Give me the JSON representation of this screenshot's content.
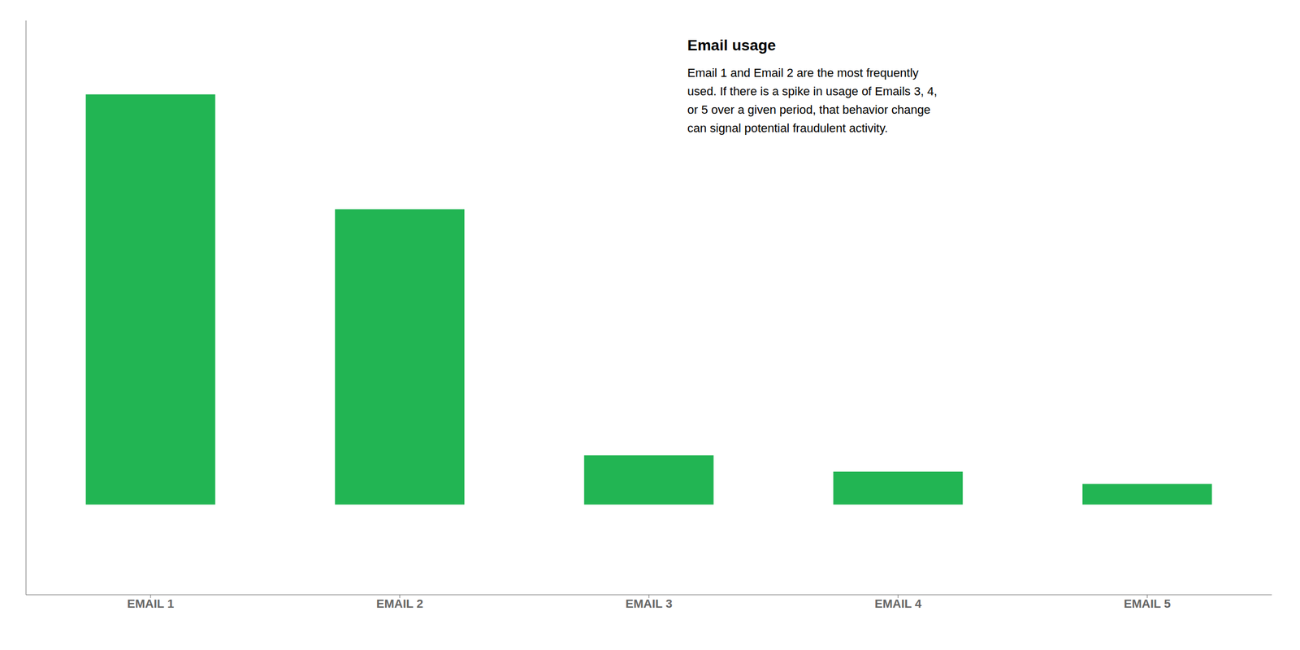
{
  "chart_data": {
    "type": "bar",
    "categories": [
      "EMAIL 1",
      "EMAIL 2",
      "EMAIL 3",
      "EMAIL 4",
      "EMAIL 5"
    ],
    "values": [
      100,
      72,
      12,
      8,
      5
    ],
    "color": "#22b553",
    "ylim": [
      -22,
      118
    ],
    "tick_labels": "x",
    "annotations": [
      {
        "title": "Email usage",
        "lines": [
          "Email 1 and Email 2 are the most frequently",
          "used. If there is a spike in usage of Emails 3, 4,",
          "or 5 over a given period, that behavior change",
          "can signal potential fraudulent activity."
        ]
      }
    ]
  }
}
